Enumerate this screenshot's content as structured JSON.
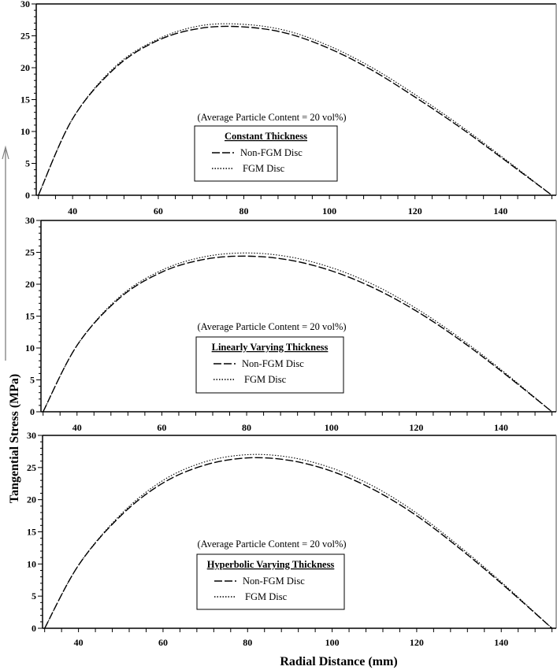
{
  "chart_data": [
    {
      "type": "line",
      "xlabel": "Radial Distance (mm)",
      "ylabel": "Tangential Stress (MPa)",
      "xlim": [
        31.5,
        153
      ],
      "ylim": [
        0,
        30
      ],
      "xticks": [
        40,
        60,
        80,
        100,
        120,
        140
      ],
      "yticks": [
        0,
        5,
        10,
        15,
        20,
        25,
        30
      ],
      "annotation": "(Average Particle Content = 20 vol%)",
      "legend_title": "Constant Thickness",
      "legend_placement": "center",
      "x": [
        32,
        40,
        50,
        60,
        70,
        80,
        90,
        100,
        110,
        120,
        130,
        140,
        152
      ],
      "series": [
        {
          "name": "Non-FGM Disc",
          "style": "dashed",
          "values": [
            0,
            12,
            20,
            24.3,
            26.2,
            26.4,
            25.4,
            23.0,
            19.6,
            15.4,
            10.9,
            6.0,
            0
          ]
        },
        {
          "name": "FGM Disc",
          "style": "dotted",
          "values": [
            0,
            12,
            20.2,
            24.5,
            26.6,
            26.8,
            25.8,
            23.4,
            20.0,
            15.8,
            11.2,
            6.2,
            0
          ]
        }
      ]
    },
    {
      "type": "line",
      "xlabel": "",
      "ylabel": "",
      "xlim": [
        31.5,
        153
      ],
      "ylim": [
        0,
        30
      ],
      "xticks": [
        40,
        60,
        80,
        100,
        120,
        140
      ],
      "yticks": [
        0,
        5,
        10,
        15,
        20,
        25,
        30
      ],
      "annotation": "(Average Particle Content = 20 vol%)",
      "legend_title": "Linearly Varying Thickness",
      "legend_placement": "center",
      "x": [
        32,
        40,
        50,
        60,
        70,
        80,
        90,
        100,
        110,
        120,
        130,
        140,
        152
      ],
      "series": [
        {
          "name": "Non-FGM Disc",
          "style": "dashed",
          "values": [
            0,
            10.4,
            17.8,
            21.9,
            23.9,
            24.4,
            23.8,
            22.1,
            19.4,
            15.8,
            11.4,
            6.4,
            0
          ]
        },
        {
          "name": "FGM Disc",
          "style": "dotted",
          "values": [
            0,
            10.4,
            18.0,
            22.2,
            24.3,
            24.9,
            24.3,
            22.6,
            19.9,
            16.2,
            11.7,
            6.6,
            0
          ]
        }
      ]
    },
    {
      "type": "line",
      "xlabel": "",
      "ylabel": "",
      "xlim": [
        31.5,
        153
      ],
      "ylim": [
        0,
        30
      ],
      "xticks": [
        40,
        60,
        80,
        100,
        120,
        140
      ],
      "yticks": [
        0,
        5,
        10,
        15,
        20,
        25,
        30
      ],
      "annotation": "(Average Particle Content = 20 vol%)",
      "legend_title": "Hyperbolic Varying Thickness",
      "legend_placement": "center",
      "x": [
        32,
        40,
        50,
        60,
        70,
        80,
        90,
        100,
        110,
        120,
        130,
        140,
        152
      ],
      "series": [
        {
          "name": "Non-FGM Disc",
          "style": "dashed",
          "values": [
            0,
            9.8,
            17.5,
            22.6,
            25.4,
            26.5,
            26.1,
            24.4,
            21.5,
            17.5,
            12.5,
            7.0,
            0
          ]
        },
        {
          "name": "FGM Disc",
          "style": "dotted",
          "values": [
            0,
            9.8,
            17.7,
            23.0,
            25.9,
            27.0,
            26.6,
            24.9,
            22.0,
            17.9,
            12.8,
            7.2,
            0
          ]
        }
      ]
    }
  ],
  "colors": {
    "line": "#000000",
    "axis_arrow": "#808080"
  }
}
